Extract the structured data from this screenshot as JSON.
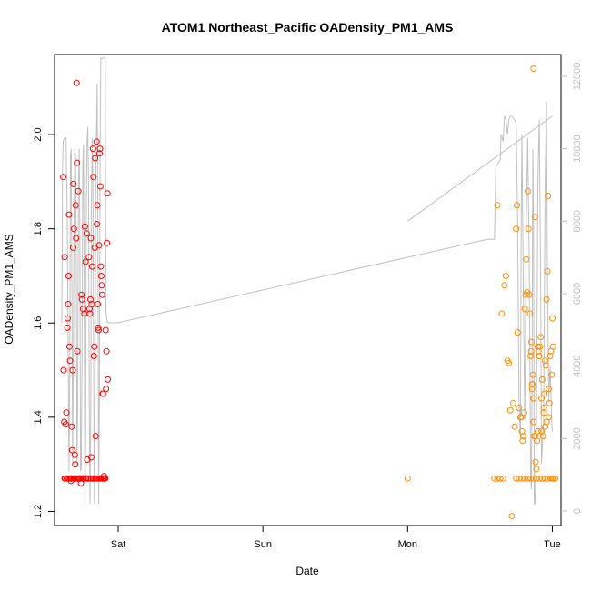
{
  "chart_data": {
    "type": "scatter",
    "title": "ATOM1 Northeast_Pacific OADensity_PM1_AMS",
    "xlabel": "Date",
    "ylabel": "OADensity_PM1_AMS",
    "x_ticks": [
      "Sat",
      "Sun",
      "Mon",
      "Tue"
    ],
    "x_unit": "days (0 = Sat 00:00)",
    "xlim": [
      -0.44,
      3.06
    ],
    "ylim": [
      1.17,
      2.17
    ],
    "y_ticks": [
      1.2,
      1.4,
      1.6,
      1.8,
      2.0
    ],
    "y2_ticks": [
      0,
      2000,
      4000,
      6000,
      8000,
      10000,
      12000
    ],
    "y2lim": [
      -400,
      12600
    ],
    "grid": false,
    "legend": "none",
    "colors": {
      "series_red": "#ff0000",
      "series_orange": "#ff8c00",
      "line_gray": "#c0c0c0",
      "axis": "#000000",
      "axis_right": "#c0c0c0"
    },
    "series": [
      {
        "color": "red",
        "points": [
          [
            -0.38,
            1.91
          ],
          [
            -0.377,
            1.5
          ],
          [
            -0.373,
            1.39
          ],
          [
            -0.37,
            1.74
          ],
          [
            -0.366,
            1.27
          ],
          [
            -0.362,
            1.385
          ],
          [
            -0.358,
            1.41
          ],
          [
            -0.352,
            1.59
          ],
          [
            -0.349,
            1.61
          ],
          [
            -0.346,
            1.64
          ],
          [
            -0.343,
            1.7
          ],
          [
            -0.34,
            1.83
          ],
          [
            -0.337,
            1.55
          ],
          [
            -0.333,
            1.52
          ],
          [
            -0.33,
            1.27
          ],
          [
            -0.327,
            1.265
          ],
          [
            -0.324,
            1.27
          ],
          [
            -0.321,
            1.38
          ],
          [
            -0.318,
            1.33
          ],
          [
            -0.315,
            1.5
          ],
          [
            -0.312,
            1.76
          ],
          [
            -0.309,
            1.895
          ],
          [
            -0.306,
            1.8
          ],
          [
            -0.303,
            1.27
          ],
          [
            -0.3,
            1.32
          ],
          [
            -0.297,
            1.3
          ],
          [
            -0.294,
            1.85
          ],
          [
            -0.291,
            1.78
          ],
          [
            -0.288,
            2.11
          ],
          [
            -0.285,
            1.94
          ],
          [
            -0.282,
            1.54
          ],
          [
            -0.279,
            1.27
          ],
          [
            -0.276,
            1.88
          ],
          [
            -0.273,
            1.27
          ],
          [
            -0.27,
            1.27
          ],
          [
            -0.266,
            1.27
          ],
          [
            -0.262,
            1.27
          ],
          [
            -0.258,
            1.26
          ],
          [
            -0.254,
            1.66
          ],
          [
            -0.25,
            1.65
          ],
          [
            -0.246,
            1.27
          ],
          [
            -0.242,
            1.63
          ],
          [
            -0.238,
            1.27
          ],
          [
            -0.234,
            1.62
          ],
          [
            -0.23,
            1.805
          ],
          [
            -0.226,
            1.73
          ],
          [
            -0.222,
            1.27
          ],
          [
            -0.218,
            1.79
          ],
          [
            -0.214,
            1.31
          ],
          [
            -0.21,
            1.27
          ],
          [
            -0.206,
            1.27
          ],
          [
            -0.202,
            1.74
          ],
          [
            -0.198,
            1.63
          ],
          [
            -0.195,
            1.62
          ],
          [
            -0.192,
            1.65
          ],
          [
            -0.189,
            1.78
          ],
          [
            -0.186,
            1.315
          ],
          [
            -0.183,
            1.64
          ],
          [
            -0.18,
            1.72
          ],
          [
            -0.177,
            1.27
          ],
          [
            -0.174,
            1.97
          ],
          [
            -0.171,
            1.91
          ],
          [
            -0.168,
            1.53
          ],
          [
            -0.165,
            1.55
          ],
          [
            -0.162,
            1.76
          ],
          [
            -0.159,
            1.95
          ],
          [
            -0.156,
            1.36
          ],
          [
            -0.153,
            1.27
          ],
          [
            -0.15,
            1.985
          ],
          [
            -0.147,
            1.81
          ],
          [
            -0.144,
            1.85
          ],
          [
            -0.141,
            1.64
          ],
          [
            -0.138,
            1.59
          ],
          [
            -0.135,
            1.585
          ],
          [
            -0.132,
            1.765
          ],
          [
            -0.129,
            1.96
          ],
          [
            -0.126,
            1.97
          ],
          [
            -0.123,
            1.89
          ],
          [
            -0.12,
            1.72
          ],
          [
            -0.117,
            1.7
          ],
          [
            -0.114,
            1.68
          ],
          [
            -0.111,
            1.66
          ],
          [
            -0.108,
            1.45
          ],
          [
            -0.105,
            1.45
          ],
          [
            -0.102,
            1.27
          ],
          [
            -0.099,
            1.275
          ],
          [
            -0.096,
            1.27
          ],
          [
            -0.093,
            1.27
          ],
          [
            -0.09,
            1.27
          ],
          [
            -0.087,
            1.585
          ],
          [
            -0.084,
            1.46
          ],
          [
            -0.081,
            1.54
          ],
          [
            -0.078,
            1.77
          ],
          [
            -0.075,
            1.875
          ],
          [
            -0.072,
            1.48
          ],
          [
            -0.37,
            1.27
          ],
          [
            -0.355,
            1.27
          ],
          [
            -0.345,
            1.27
          ],
          [
            -0.335,
            1.27
          ],
          [
            -0.325,
            1.27
          ],
          [
            -0.31,
            1.27
          ],
          [
            -0.29,
            1.27
          ],
          [
            -0.265,
            1.27
          ],
          [
            -0.25,
            1.27
          ],
          [
            -0.24,
            1.27
          ],
          [
            -0.225,
            1.27
          ],
          [
            -0.21,
            1.27
          ],
          [
            -0.19,
            1.27
          ],
          [
            -0.17,
            1.27
          ],
          [
            -0.16,
            1.27
          ],
          [
            -0.145,
            1.27
          ],
          [
            -0.13,
            1.27
          ],
          [
            -0.12,
            1.27
          ],
          [
            -0.11,
            1.27
          ]
        ]
      },
      {
        "color": "orange",
        "points": [
          [
            2.0,
            1.27
          ],
          [
            2.6,
            1.27
          ],
          [
            2.62,
            1.27
          ],
          [
            2.64,
            1.27
          ],
          [
            2.66,
            1.27
          ],
          [
            2.75,
            1.27
          ],
          [
            2.77,
            1.27
          ],
          [
            2.79,
            1.27
          ],
          [
            2.81,
            1.27
          ],
          [
            2.83,
            1.27
          ],
          [
            2.85,
            1.27
          ],
          [
            2.87,
            1.27
          ],
          [
            2.89,
            1.27
          ],
          [
            2.91,
            1.27
          ],
          [
            2.93,
            1.27
          ],
          [
            2.95,
            1.27
          ],
          [
            2.97,
            1.27
          ],
          [
            2.99,
            1.27
          ],
          [
            3.0,
            1.27
          ],
          [
            3.01,
            1.27
          ],
          [
            3.02,
            1.27
          ],
          [
            2.62,
            1.85
          ],
          [
            2.65,
            1.62
          ],
          [
            2.67,
            1.68
          ],
          [
            2.68,
            1.7
          ],
          [
            2.69,
            1.52
          ],
          [
            2.7,
            1.515
          ],
          [
            2.71,
            1.415
          ],
          [
            2.72,
            1.19
          ],
          [
            2.73,
            1.43
          ],
          [
            2.74,
            1.38
          ],
          [
            2.75,
            1.8
          ],
          [
            2.755,
            1.85
          ],
          [
            2.76,
            1.58
          ],
          [
            2.77,
            1.42
          ],
          [
            2.78,
            1.4
          ],
          [
            2.785,
            1.4
          ],
          [
            2.79,
            1.37
          ],
          [
            2.795,
            1.35
          ],
          [
            2.8,
            1.36
          ],
          [
            2.805,
            1.41
          ],
          [
            2.81,
            1.63
          ],
          [
            2.815,
            1.66
          ],
          [
            2.82,
            1.735
          ],
          [
            2.825,
            1.665
          ],
          [
            2.83,
            1.88
          ],
          [
            2.835,
            1.8
          ],
          [
            2.84,
            1.66
          ],
          [
            2.845,
            1.62
          ],
          [
            2.85,
            1.53
          ],
          [
            2.853,
            1.54
          ],
          [
            2.856,
            1.56
          ],
          [
            2.86,
            1.46
          ],
          [
            2.863,
            1.47
          ],
          [
            2.866,
            1.49
          ],
          [
            2.87,
            1.44
          ],
          [
            2.875,
            1.36
          ],
          [
            2.88,
            1.36
          ],
          [
            2.885,
            1.305
          ],
          [
            2.89,
            1.29
          ],
          [
            2.895,
            1.35
          ],
          [
            2.9,
            1.37
          ],
          [
            2.905,
            1.54
          ],
          [
            2.91,
            1.53
          ],
          [
            2.915,
            1.55
          ],
          [
            2.92,
            1.57
          ],
          [
            2.925,
            1.44
          ],
          [
            2.93,
            1.48
          ],
          [
            2.935,
            1.36
          ],
          [
            2.94,
            1.41
          ],
          [
            2.945,
            1.45
          ],
          [
            2.95,
            1.52
          ],
          [
            2.955,
            1.51
          ],
          [
            2.96,
            1.65
          ],
          [
            2.965,
            1.71
          ],
          [
            2.97,
            1.87
          ],
          [
            2.975,
            1.4
          ],
          [
            2.98,
            1.43
          ],
          [
            2.985,
            1.53
          ],
          [
            2.99,
            1.54
          ],
          [
            2.995,
            1.49
          ],
          [
            3.0,
            1.61
          ],
          [
            3.005,
            1.55
          ],
          [
            2.86,
            1.47
          ],
          [
            2.87,
            2.14
          ],
          [
            2.88,
            1.825
          ],
          [
            2.9,
            1.55
          ],
          [
            2.925,
            1.37
          ],
          [
            2.94,
            1.42
          ],
          [
            2.96,
            1.39
          ],
          [
            2.975,
            1.46
          ],
          [
            2.87,
            1.39
          ],
          [
            2.95,
            1.38
          ]
        ]
      }
    ],
    "line_series": {
      "color": "gray",
      "axis": "right",
      "points": [
        [
          -0.39,
          5200
        ],
        [
          -0.385,
          9500
        ],
        [
          -0.38,
          10200
        ],
        [
          -0.37,
          10300
        ],
        [
          -0.36,
          10300
        ],
        [
          -0.352,
          8000
        ],
        [
          -0.345,
          4000
        ],
        [
          -0.34,
          1100
        ],
        [
          -0.335,
          3500
        ],
        [
          -0.33,
          9800
        ],
        [
          -0.325,
          10000
        ],
        [
          -0.32,
          6000
        ],
        [
          -0.315,
          1300
        ],
        [
          -0.31,
          4500
        ],
        [
          -0.305,
          8200
        ],
        [
          -0.3,
          10000
        ],
        [
          -0.295,
          9800
        ],
        [
          -0.29,
          7000
        ],
        [
          -0.285,
          1200
        ],
        [
          -0.28,
          3000
        ],
        [
          -0.275,
          9000
        ],
        [
          -0.27,
          10000
        ],
        [
          -0.265,
          8000
        ],
        [
          -0.26,
          1100
        ],
        [
          -0.255,
          1200
        ],
        [
          -0.25,
          4000
        ],
        [
          -0.245,
          9500
        ],
        [
          -0.24,
          10100
        ],
        [
          -0.235,
          6000
        ],
        [
          -0.23,
          200
        ],
        [
          -0.225,
          2000
        ],
        [
          -0.22,
          8500
        ],
        [
          -0.215,
          10200
        ],
        [
          -0.21,
          10600
        ],
        [
          -0.205,
          9000
        ],
        [
          -0.2,
          3000
        ],
        [
          -0.195,
          200
        ],
        [
          -0.19,
          2500
        ],
        [
          -0.185,
          8500
        ],
        [
          -0.18,
          10300
        ],
        [
          -0.175,
          9000
        ],
        [
          -0.17,
          4000
        ],
        [
          -0.165,
          200
        ],
        [
          -0.16,
          4000
        ],
        [
          -0.155,
          9500
        ],
        [
          -0.15,
          10500
        ],
        [
          -0.145,
          11800
        ],
        [
          -0.14,
          7500
        ],
        [
          -0.135,
          200
        ],
        [
          -0.13,
          3000
        ],
        [
          -0.125,
          10000
        ],
        [
          -0.12,
          12500
        ],
        [
          -0.11,
          12500
        ],
        [
          -0.1,
          12500
        ],
        [
          -0.09,
          12500
        ],
        [
          -0.085,
          5500
        ],
        [
          -0.075,
          5200
        ],
        [
          0.0,
          5200
        ],
        [
          2.55,
          7500
        ],
        [
          2.6,
          7500
        ],
        [
          2.61,
          9500
        ],
        [
          2.64,
          9700
        ],
        [
          2.645,
          10400
        ],
        [
          2.66,
          10200
        ],
        [
          2.67,
          10900
        ],
        [
          2.68,
          10800
        ],
        [
          2.69,
          10400
        ],
        [
          2.7,
          10800
        ],
        [
          2.71,
          10900
        ],
        [
          2.72,
          10900
        ],
        [
          2.73,
          10850
        ],
        [
          2.74,
          10800
        ],
        [
          2.75,
          10700
        ],
        [
          2.76,
          8000
        ],
        [
          2.77,
          3000
        ],
        [
          2.78,
          2000
        ],
        [
          2.785,
          8000
        ],
        [
          2.79,
          10400
        ],
        [
          2.8,
          6000
        ],
        [
          2.81,
          2500
        ],
        [
          2.82,
          8000
        ],
        [
          2.83,
          10300
        ],
        [
          2.84,
          7000
        ],
        [
          2.85,
          1000
        ],
        [
          2.855,
          600
        ],
        [
          2.86,
          4000
        ],
        [
          2.865,
          10000
        ],
        [
          2.87,
          8000
        ],
        [
          2.875,
          200
        ],
        [
          2.88,
          200
        ],
        [
          2.89,
          2000
        ],
        [
          2.9,
          9000
        ],
        [
          2.91,
          10800
        ],
        [
          2.92,
          6000
        ],
        [
          2.925,
          1300
        ],
        [
          2.94,
          2500
        ],
        [
          2.95,
          9000
        ],
        [
          2.96,
          11300
        ],
        [
          2.965,
          7000
        ],
        [
          2.975,
          3000
        ],
        [
          2.985,
          4000
        ],
        [
          2.995,
          2500
        ],
        [
          3.0,
          2200
        ]
      ],
      "segments_extra": [
        [
          [
            2.0,
            8000
          ],
          [
            3.0,
            10900
          ]
        ]
      ]
    }
  }
}
